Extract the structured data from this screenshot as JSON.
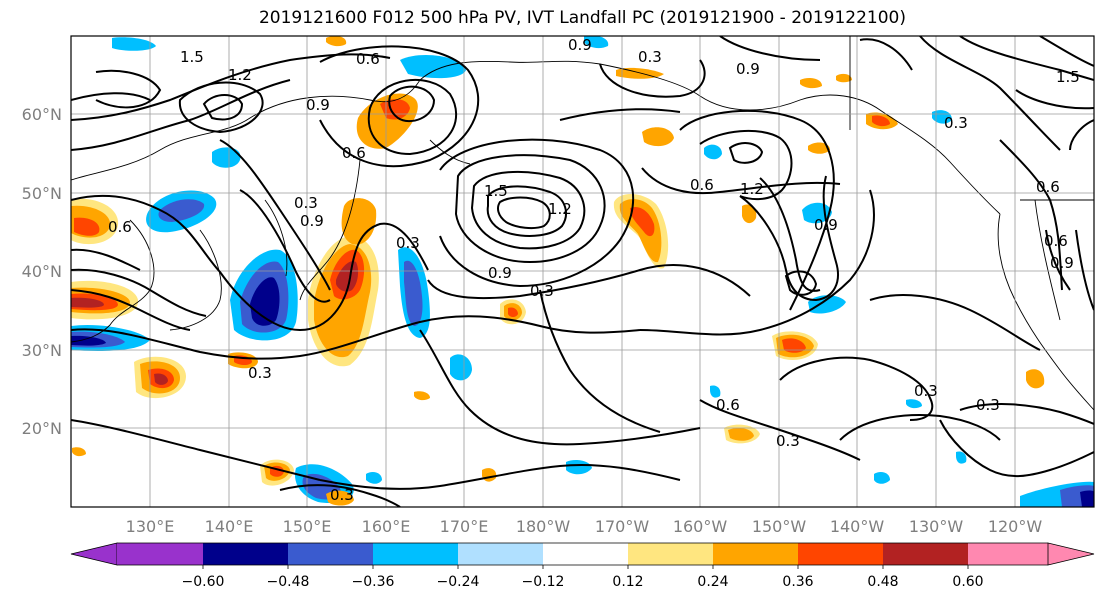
{
  "title": "2019121600 F012 500 hPa PV, IVT Landfall PC (2019121900 - 2019122100)",
  "latitude_labels": [
    "60°N",
    "50°N",
    "40°N",
    "30°N",
    "20°N"
  ],
  "longitude_labels": [
    "130°E",
    "140°E",
    "150°E",
    "160°E",
    "170°E",
    "180°W",
    "170°W",
    "160°W",
    "150°W",
    "140°W",
    "130°W",
    "120°W"
  ],
  "colorbar": {
    "tick_labels": [
      "−0.60",
      "−0.48",
      "−0.36",
      "−0.24",
      "−0.12",
      "0.12",
      "0.24",
      "0.36",
      "0.48",
      "0.60"
    ],
    "colors": [
      "#9932cc",
      "#00008b",
      "#3a5bcf",
      "#00bfff",
      "#b0e0ff",
      "#ffffff",
      "#ffe680",
      "#ffa500",
      "#ff4500",
      "#b22222",
      "#ff88b0"
    ]
  },
  "contour_labels": [
    "1.5",
    "1.2",
    "0.6",
    "0.9",
    "0.9",
    "0.3",
    "0.9",
    "1.2",
    "0.6",
    "0.9",
    "0.6",
    "0.3",
    "1.5",
    "0.9",
    "0.3",
    "0.6",
    "1.2",
    "0.9",
    "0.3",
    "0.6",
    "0.3",
    "0.3",
    "0.3",
    "0.3",
    "0.3",
    "0.6",
    "0.9",
    "0.6",
    "0.3",
    "1.5"
  ],
  "contour_level_colors": {
    "pv_line": "#000000",
    "grid": "#9a9a9a"
  }
}
